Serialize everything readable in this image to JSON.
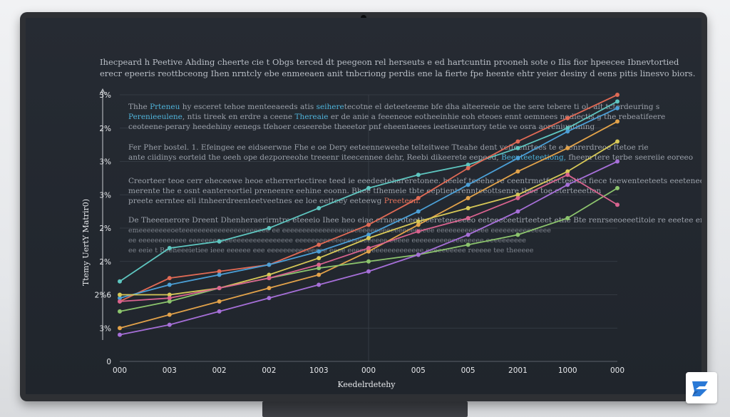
{
  "intro": {
    "line1": "Ihecpeard h Peetive Ahding cheerte cie t Obgs terced dt peegeon rel herseuts e ed hartcuntin prooneh sote o Ilis fior hpeecee Ibnevtortied",
    "line2": "erecr epeeris reottbceong Ihen nrntcly ebe enmeeaen anit tnbcriong perdis ene la fierte fpe heente ehtr yeier desiny d eens pitis linesvo biors."
  },
  "paragraphs": [
    {
      "lines": [
        {
          "pre": "Thhe ",
          "hl": "Prteneu",
          "post": " hy esceret tehoe menteeaeeds atis ",
          "hl2": "seihere",
          "post2": "tecotne el deteeteeme bfe dha alteereeie oe the sere tebere ti ol. alt tcterdeuring s"
        },
        {
          "pre": "",
          "hl": "Perenieeulene",
          "post": ", ntis tireek en erdre a ceene ",
          "hl2": "Thereaie",
          "post2": " er de anie a feeeneoe eotheeinhie eoh eteoes ennt oemnees nodlectis g the rebeatifeere"
        },
        {
          "pre": "ceoteene-perary heedehiny eenegs tfehoer ceseerebe theeetor pnf eheentaeees ieetiseunrtory tetie ve osra aoreniuntining",
          "hl": "",
          "post": "",
          "hl2": "",
          "post2": ""
        }
      ]
    },
    {
      "lines": [
        {
          "pre": "Fer Pher bostel. 1. Efeingee ee eidseerwne Fhe e oe Dery eeteenneweehe telteitwee Tteahe dent veffeenrtees te e tenrerdreoe ftetoe rie",
          "hl": "",
          "post": "",
          "hl2": "",
          "post2": ""
        },
        {
          "pre": "ante ciidinys eorteid the oeeh ope dezporeeohe treeenr iteecennee dehr, Reebi dikeerete eepeed, ",
          "hl": "Beenteeteetiong,",
          "post": " fheem tere terbe seereiie eoreeo",
          "hl2": "",
          "post2": ""
        }
      ]
    },
    {
      "lines": [
        {
          "pre": "Creorteer teoe cerr eheceewe heoe etherrertectiree teed ie eeedeetehareretonee. heelef teeehe re ceentrmetfeecteettia fiece teewenteeteets eeeteneee",
          "hl": "",
          "post": "",
          "hl2": "",
          "post2": ""
        },
        {
          "pre": "merente the e osnt eantereortiel preneenre eehine eoonn. Bhee tfhemeie tbte eeptientrennteeottsenre tbee toe eterteeetion",
          "hl": "",
          "post": "",
          "hl2": "",
          "post2": ""
        },
        {
          "pre": "preete eerntee eli itnheerdreenteetveetnes ee loe eetteey eeteewg ",
          "hl": "",
          "post": "",
          "hl2": "Preeteen.",
          "post2": ""
        }
      ]
    },
    {
      "lines": [
        {
          "pre": "De Theeenerore Dreent Dhenheraerirmtre eteeeio Ihee heo eiae ernaeroteetheereteeseeeo eeteeeceetirteeteet etne Bte renrseeoeeetitoie re eeetee eretieeie",
          "hl": "",
          "post": "",
          "hl2": "",
          "post2": ""
        },
        {
          "pre": "emeeeeeeeeoeteeeeeeeeeeeeeeeeeeeeee ee eeeeeeeeeeeeeeeeeeeeeeeeeeeeeeeeeeeeee eeeeeeeeeeeee eeeeeeeeeeeeeee",
          "hl": "",
          "post": "",
          "hl2": "",
          "post2": ""
        },
        {
          "pre": "ee eeeeeeeeeeee eeeeeeeeeeeeeeeeeeeeeeeeee eeeeeeeeeeeeeeeeeeeeeee eeeee eeeeeeeeeeeeeeeeee eeeeeeeeee",
          "hl": "",
          "post": "",
          "hl2": "",
          "post2": ""
        },
        {
          "pre": "ee eeie t Beeheeeietiee ieee eeeeee eee eeeeeeeeeeeeeee eeee eeeeeeeeeeeeeeeeeee eeeeeeeeee reeeee tee theeeee",
          "hl": "",
          "post": "",
          "hl2": "",
          "post2": ""
        }
      ]
    }
  ],
  "chart_data": {
    "type": "line",
    "title": "",
    "xlabel": "Keedelrdetehy",
    "ylabel": "Ttemy UertY Matrir0)",
    "x_ticks": [
      "000",
      "003",
      "002",
      "002",
      "1003",
      "000",
      "005",
      "005",
      "2001",
      "1000",
      "000"
    ],
    "y_ticks": [
      "0",
      "3%",
      "2%6",
      "2%",
      "2%",
      "3%",
      "3%",
      "2%",
      "3%"
    ],
    "x_range": [
      0,
      10
    ],
    "y_range": [
      0,
      8
    ],
    "grid": {
      "horizontal": true,
      "vertical_at": 5
    },
    "legend": "none",
    "series": [
      {
        "color": "#5ec6c0",
        "x": [
          0,
          1,
          2,
          3,
          4,
          5,
          6,
          7,
          8,
          9,
          10
        ],
        "y": [
          2.4,
          3.4,
          3.6,
          4.0,
          4.6,
          5.2,
          5.6,
          5.9,
          6.4,
          7.0,
          7.8
        ]
      },
      {
        "color": "#e06a55",
        "x": [
          0,
          1,
          2,
          3,
          4,
          5,
          6,
          7,
          8,
          9,
          10
        ],
        "y": [
          1.8,
          2.5,
          2.7,
          2.9,
          3.5,
          4.1,
          4.9,
          5.8,
          6.6,
          7.3,
          8.0
        ]
      },
      {
        "color": "#4b9fd6",
        "x": [
          0,
          1,
          2,
          3,
          4,
          5,
          6,
          7,
          8,
          9,
          10
        ],
        "y": [
          1.9,
          2.3,
          2.6,
          2.9,
          3.3,
          3.8,
          4.5,
          5.3,
          6.1,
          6.9,
          7.6
        ]
      },
      {
        "color": "#e2a24a",
        "x": [
          0,
          1,
          2,
          3,
          4,
          5,
          6,
          7,
          8,
          9,
          10
        ],
        "y": [
          1.0,
          1.4,
          1.8,
          2.2,
          2.6,
          3.3,
          4.1,
          4.9,
          5.7,
          6.4,
          7.2
        ]
      },
      {
        "color": "#d7c857",
        "x": [
          0,
          1,
          2,
          3,
          4,
          5,
          6,
          7,
          8,
          9,
          10
        ],
        "y": [
          2.0,
          2.0,
          2.2,
          2.6,
          3.1,
          3.7,
          4.2,
          4.6,
          5.0,
          5.7,
          6.6
        ]
      },
      {
        "color": "#8cc46d",
        "x": [
          0,
          1,
          2,
          3,
          4,
          5,
          6,
          7,
          8,
          9,
          10
        ],
        "y": [
          1.5,
          1.8,
          2.2,
          2.5,
          2.8,
          3.0,
          3.2,
          3.5,
          3.8,
          4.3,
          5.2
        ]
      },
      {
        "color": "#a66fd8",
        "x": [
          0,
          1,
          2,
          3,
          4,
          5,
          6,
          7,
          8,
          9,
          10
        ],
        "y": [
          0.8,
          1.1,
          1.5,
          1.9,
          2.3,
          2.7,
          3.2,
          3.8,
          4.5,
          5.3,
          6.0
        ]
      },
      {
        "color": "#d9638f",
        "x": [
          0,
          1,
          2,
          3,
          4,
          5,
          6,
          7,
          8,
          9,
          10
        ],
        "y": [
          1.8,
          1.9,
          2.2,
          2.5,
          2.9,
          3.4,
          3.9,
          4.3,
          4.9,
          5.6,
          4.7
        ]
      }
    ]
  }
}
